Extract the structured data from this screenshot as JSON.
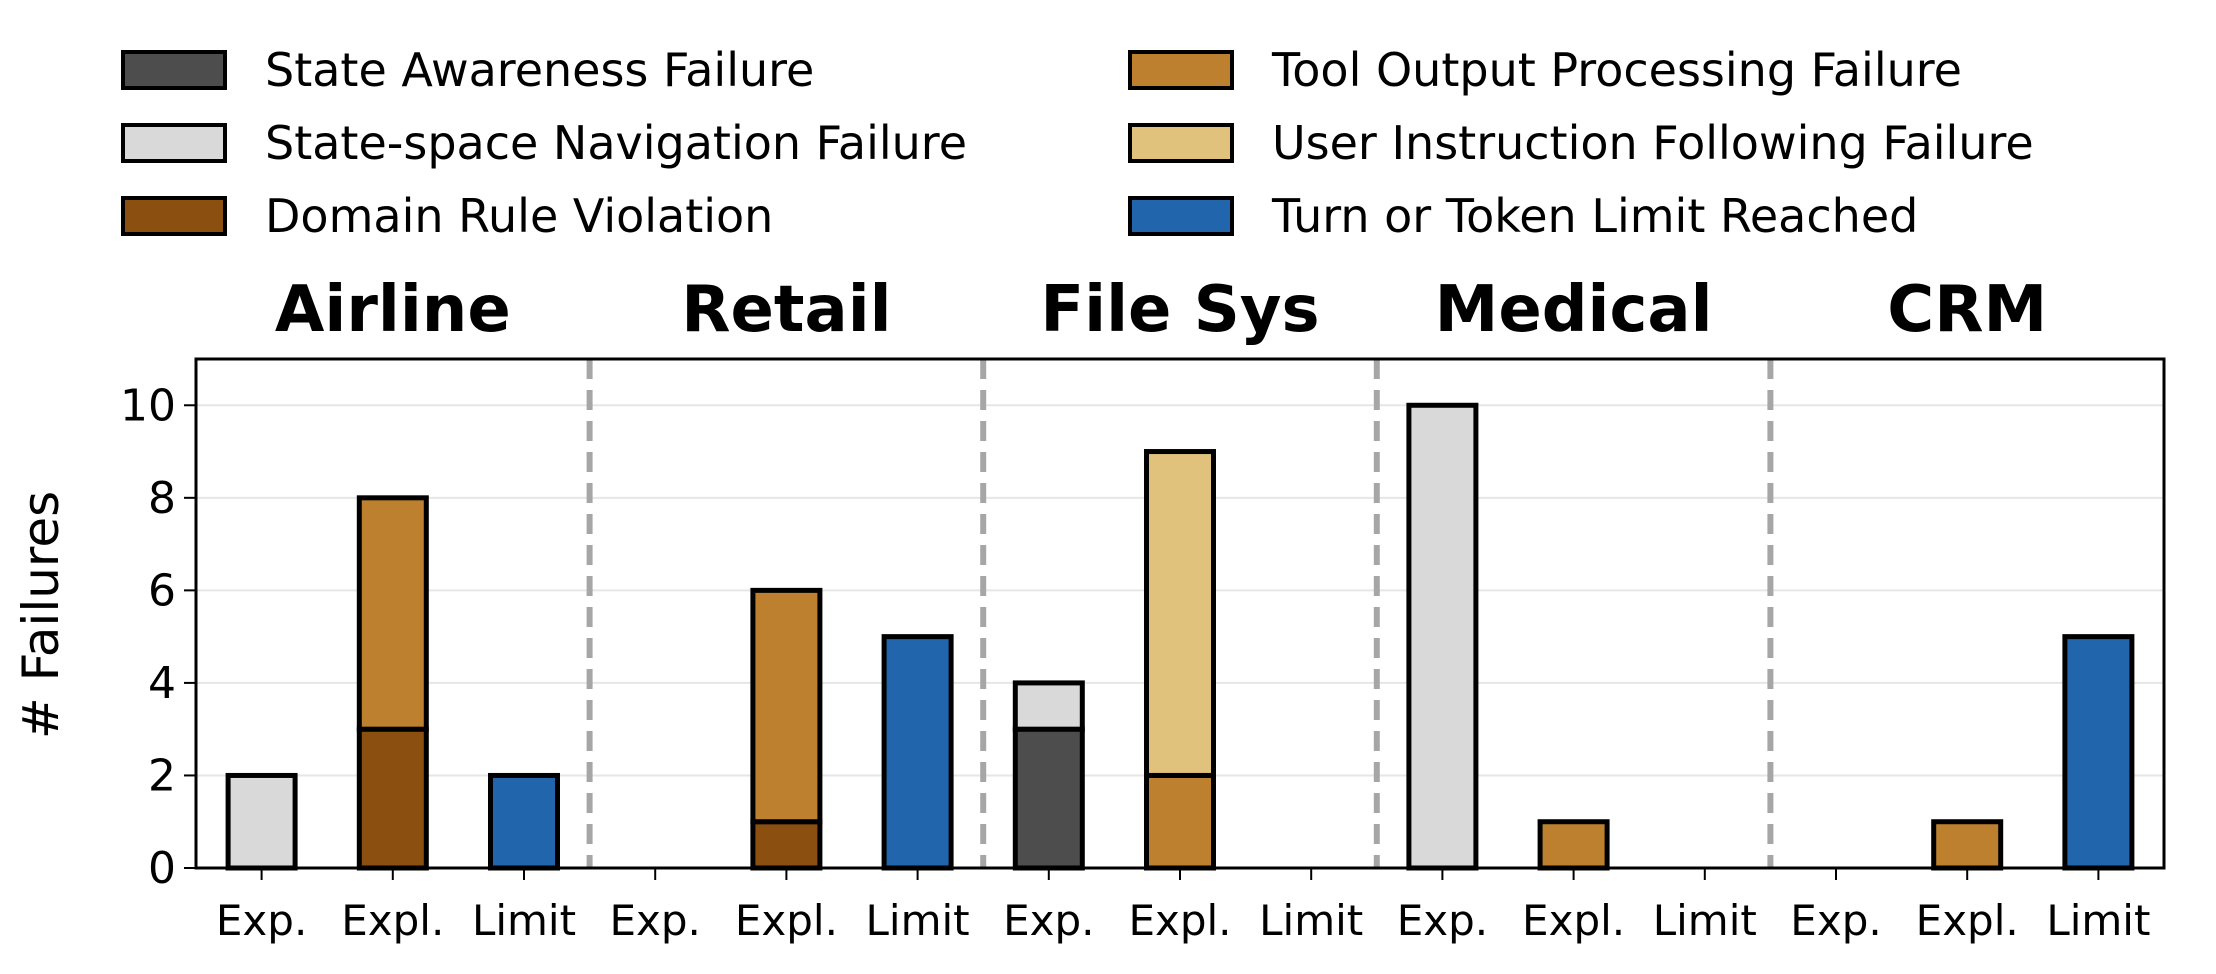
{
  "chart_data": {
    "type": "bar",
    "stacked": true,
    "ylabel": "# Failures",
    "ylim": [
      0,
      11
    ],
    "yticks": [
      0,
      2,
      4,
      6,
      8,
      10
    ],
    "grid": true,
    "legend_position": "top",
    "categories": [
      "Exp.",
      "Expl.",
      "Limit"
    ],
    "panels": [
      {
        "title": "Airline",
        "bars": [
          {
            "category": "Exp.",
            "segments": [
              {
                "series": "State-space Navigation Failure",
                "value": 2
              }
            ]
          },
          {
            "category": "Expl.",
            "segments": [
              {
                "series": "Domain Rule Violation",
                "value": 3
              },
              {
                "series": "Tool Output Processing Failure",
                "value": 5
              }
            ]
          },
          {
            "category": "Limit",
            "segments": [
              {
                "series": "Turn or Token Limit Reached",
                "value": 2
              }
            ]
          }
        ]
      },
      {
        "title": "Retail",
        "bars": [
          {
            "category": "Exp.",
            "segments": []
          },
          {
            "category": "Expl.",
            "segments": [
              {
                "series": "Domain Rule Violation",
                "value": 1
              },
              {
                "series": "Tool Output Processing Failure",
                "value": 5
              }
            ]
          },
          {
            "category": "Limit",
            "segments": [
              {
                "series": "Turn or Token Limit Reached",
                "value": 5
              }
            ]
          }
        ]
      },
      {
        "title": "File Sys",
        "bars": [
          {
            "category": "Exp.",
            "segments": [
              {
                "series": "State Awareness Failure",
                "value": 3
              },
              {
                "series": "State-space Navigation Failure",
                "value": 1
              }
            ]
          },
          {
            "category": "Expl.",
            "segments": [
              {
                "series": "Tool Output Processing Failure",
                "value": 2
              },
              {
                "series": "User Instruction Following Failure",
                "value": 7
              }
            ]
          },
          {
            "category": "Limit",
            "segments": []
          }
        ]
      },
      {
        "title": "Medical",
        "bars": [
          {
            "category": "Exp.",
            "segments": [
              {
                "series": "State-space Navigation Failure",
                "value": 10
              }
            ]
          },
          {
            "category": "Expl.",
            "segments": [
              {
                "series": "Tool Output Processing Failure",
                "value": 1
              }
            ]
          },
          {
            "category": "Limit",
            "segments": []
          }
        ]
      },
      {
        "title": "CRM",
        "bars": [
          {
            "category": "Exp.",
            "segments": []
          },
          {
            "category": "Expl.",
            "segments": [
              {
                "series": "Tool Output Processing Failure",
                "value": 1
              }
            ]
          },
          {
            "category": "Limit",
            "segments": [
              {
                "series": "Turn or Token Limit Reached",
                "value": 5
              }
            ]
          }
        ]
      }
    ],
    "series": [
      {
        "name": "State Awareness Failure",
        "color": "#4d4d4d"
      },
      {
        "name": "State-space Navigation Failure",
        "color": "#d9d9d9"
      },
      {
        "name": "Domain Rule Violation",
        "color": "#8b4f10"
      },
      {
        "name": "Tool Output Processing Failure",
        "color": "#bd802e"
      },
      {
        "name": "User Instruction Following Failure",
        "color": "#e0c27c"
      },
      {
        "name": "Turn or Token Limit Reached",
        "color": "#2166ac"
      }
    ]
  }
}
